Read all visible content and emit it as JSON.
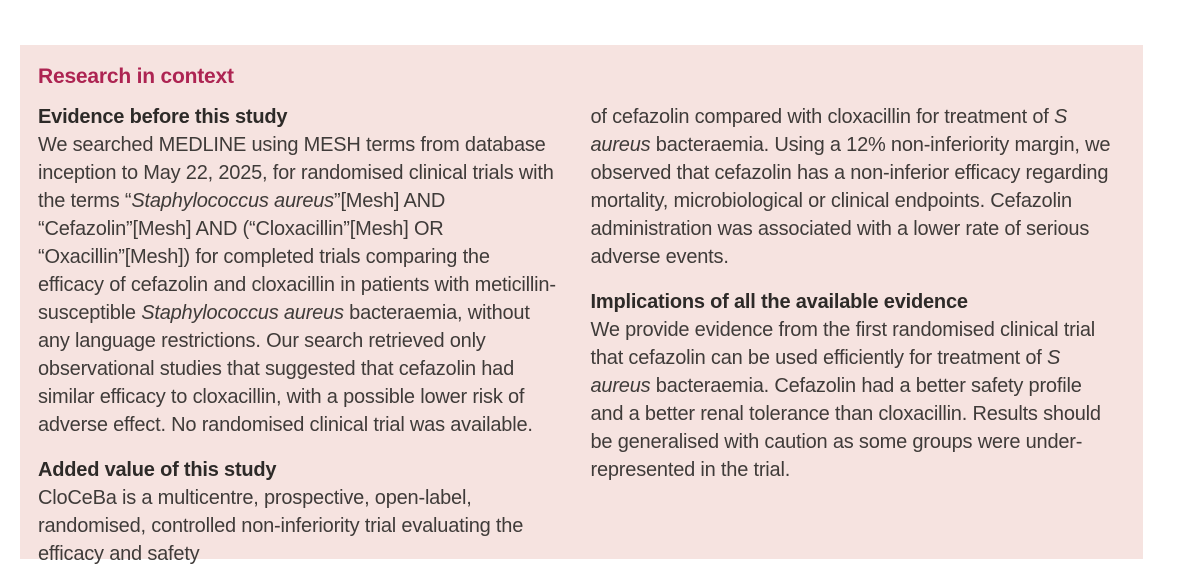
{
  "panel": {
    "title": "Research in context",
    "title_color": "#ad2452",
    "background_color": "#f6e3e0",
    "columns": [
      {
        "blocks": [
          {
            "type": "heading",
            "text": "Evidence before this study"
          },
          {
            "type": "paragraph",
            "runs": [
              {
                "text": "We searched MEDLINE using MESH terms from database inception to May 22, 2025, for randomised clinical trials with the terms “"
              },
              {
                "text": "Staphylococcus aureus",
                "italic": true
              },
              {
                "text": "”[Mesh] AND “Cefazolin”[Mesh] AND (“Cloxacillin”[Mesh] OR “Oxacillin”[Mesh]) for completed trials comparing the efficacy of cefazolin and cloxacillin in patients with meticillin-susceptible "
              },
              {
                "text": "Staphylococcus aureus",
                "italic": true
              },
              {
                "text": " bacteraemia, without any language restrictions. Our search retrieved only observational studies that suggested that cefazolin had similar efficacy to cloxacillin, with a possible lower risk of adverse effect. No randomised clinical trial was available."
              }
            ]
          },
          {
            "type": "heading",
            "text": "Added value of this study"
          },
          {
            "type": "paragraph",
            "runs": [
              {
                "text": "CloCeBa is a multicentre, prospective, open-label, randomised, controlled non-inferiority trial evaluating the efficacy and safety"
              }
            ]
          }
        ]
      },
      {
        "blocks": [
          {
            "type": "paragraph",
            "runs": [
              {
                "text": "of cefazolin compared with cloxacillin for treatment of "
              },
              {
                "text": "S aureus",
                "italic": true
              },
              {
                "text": " bacteraemia. Using a 12% non-inferiority margin, we observed that cefazolin has a non-inferior efficacy regarding mortality, microbiological or clinical endpoints. Cefazolin administration was associated with a lower rate of serious adverse events."
              }
            ]
          },
          {
            "type": "heading",
            "text": "Implications of all the available evidence"
          },
          {
            "type": "paragraph",
            "runs": [
              {
                "text": "We provide evidence from the first randomised clinical trial that cefazolin can be used efficiently for treatment of "
              },
              {
                "text": "S aureus",
                "italic": true
              },
              {
                "text": " bacteraemia. Cefazolin had a better safety profile and a better renal tolerance than cloxacillin. Results should be generalised with caution as some groups were under-represented in the trial."
              }
            ]
          }
        ]
      }
    ]
  }
}
